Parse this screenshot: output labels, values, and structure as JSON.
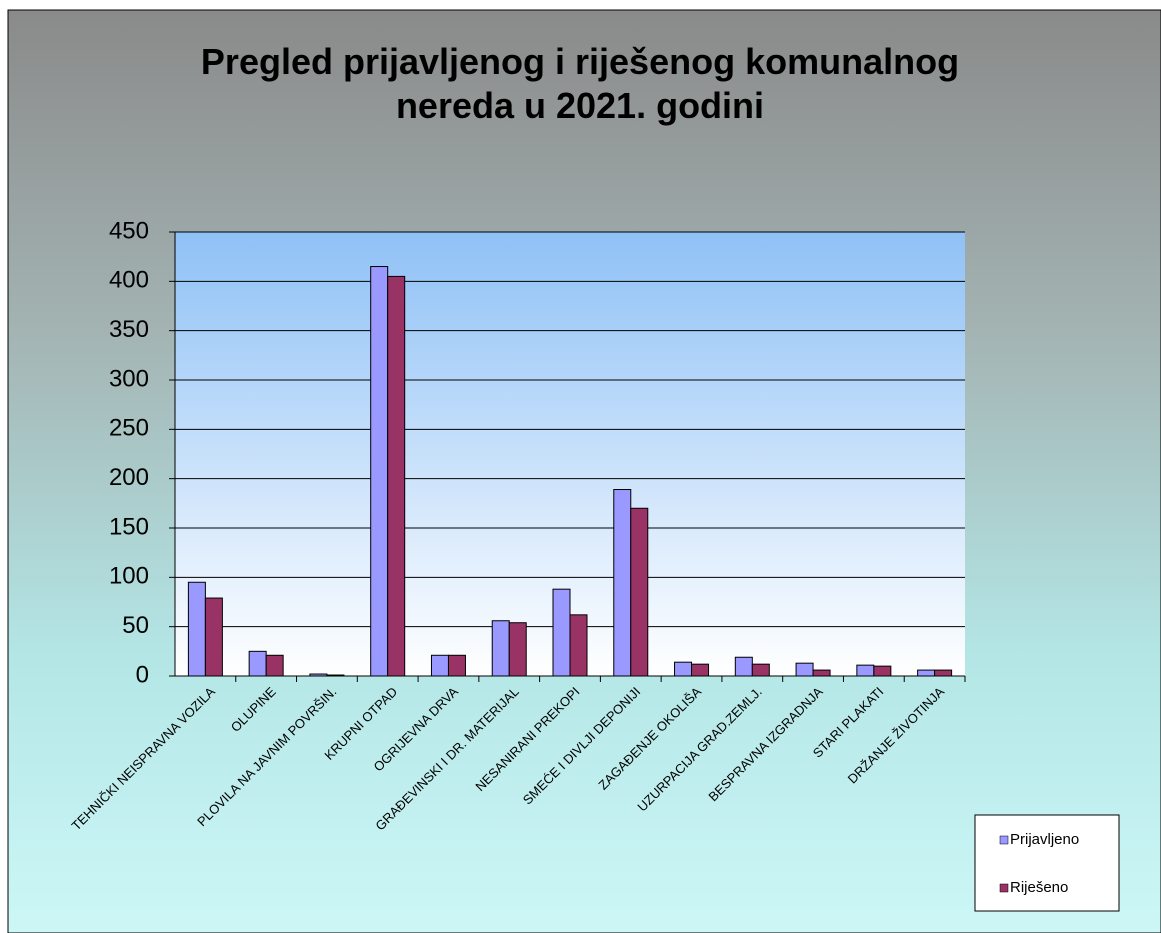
{
  "chart_data": {
    "type": "bar",
    "title": "Pregled prijavljenog i riješenog komunalnog nereda u 2021. godini",
    "categories": [
      "TEHNIČKI NEISPRAVNA VOZILA",
      "OLUPINE",
      "PLOVILA NA JAVNIM POVRŠIN.",
      "KRUPNI OTPAD",
      "OGRIJEVNA DRVA",
      "GRAĐEVINSKI I DR. MATERIJAL",
      "NESANIRANI PREKOPI",
      "SMEĆE I DIVLJI DEPONIJI",
      "ZAGAĐENJE OKOLIŠA",
      "UZURPACIJA GRAD.ZEMLJ.",
      "BESPRAVNA IZGRADNJA",
      "STARI PLAKATI",
      "DRŽANJE ŽIVOTINJA"
    ],
    "series": [
      {
        "name": "Prijavljeno",
        "color": "#9999ff",
        "values": [
          95,
          25,
          2,
          415,
          21,
          56,
          88,
          189,
          14,
          19,
          13,
          11,
          6
        ]
      },
      {
        "name": "Riješeno",
        "color": "#993366",
        "values": [
          79,
          21,
          1,
          405,
          21,
          54,
          62,
          170,
          12,
          12,
          6,
          10,
          6
        ]
      }
    ],
    "ylim": [
      0,
      450
    ],
    "yticks": [
      0,
      50,
      100,
      150,
      200,
      250,
      300,
      350,
      400,
      450
    ],
    "grid": true,
    "legend": "bottom-right"
  }
}
